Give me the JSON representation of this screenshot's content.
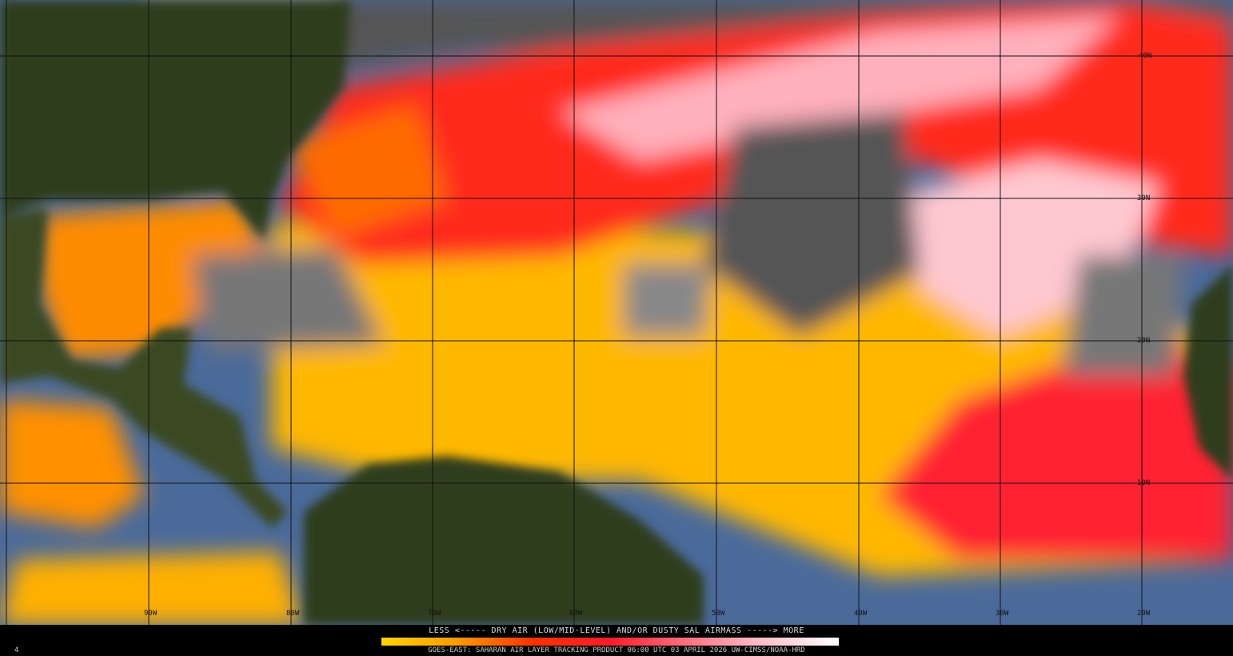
{
  "product": {
    "legend_title": "LESS <----- DRY AIR (LOW/MID-LEVEL) AND/OR DUSTY SAL AIRMASS -----> MORE",
    "footer": "GOES-EAST: SAHARAN AIR LAYER TRACKING PRODUCT    06:00 UTC    03 APRIL 2026    UW-CIMSS/NOAA-HRD",
    "frame_number": "4",
    "colorbar_colors": [
      "#ffd400",
      "#ff9a00",
      "#ff3000",
      "#ff1a2a",
      "#ff7080",
      "#ffc0c8",
      "#ffffff"
    ]
  },
  "map": {
    "latitude_labels": [
      "40N",
      "30N",
      "20N",
      "10N"
    ],
    "longitude_labels": [
      "90W",
      "80W",
      "70W",
      "60W",
      "50W",
      "40W",
      "30W",
      "20W"
    ],
    "colors": {
      "land": "#2e3d1a",
      "ocean": "#4a6a9a",
      "cloud": "#8a8a8a",
      "sal_low": "#ffd000",
      "sal_mid": "#ff6a00",
      "sal_high": "#ff1a2a",
      "sal_max": "#ffb0bc"
    }
  }
}
